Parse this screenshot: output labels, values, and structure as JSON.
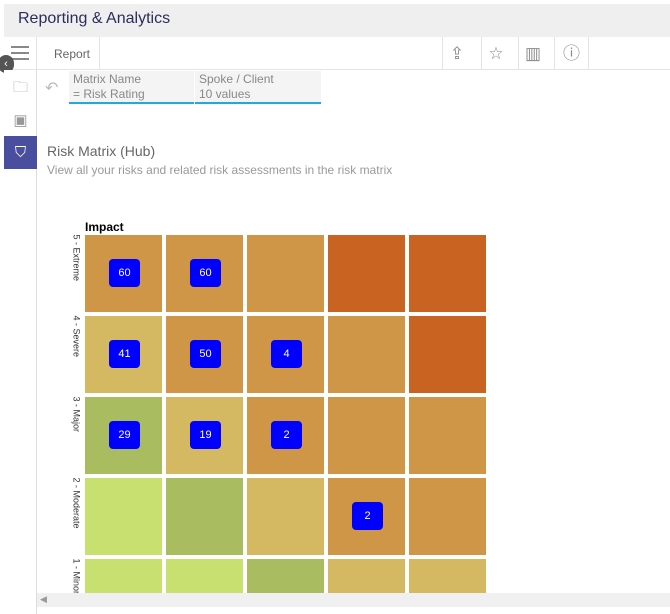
{
  "header": {
    "title": "Reporting & Analytics"
  },
  "toolbar": {
    "tab": "Report",
    "icons": [
      "share-icon",
      "star-icon",
      "report-book-icon",
      "info-icon"
    ]
  },
  "filters": [
    {
      "label": "Matrix Name",
      "value": "= Risk Rating"
    },
    {
      "label": "Spoke / Client",
      "value": "10 values"
    }
  ],
  "report": {
    "title": "Risk Matrix (Hub)",
    "subtitle": "View all your risks and related risk assessments in the risk matrix"
  },
  "chart_data": {
    "type": "heatmap",
    "title": "Impact",
    "rows": [
      "5 - Extreme",
      "4 - Severe",
      "3 - Major",
      "2 - Moderate",
      "1 - Minor"
    ],
    "columns_count": 5,
    "colors": {
      "critical": "#c86322",
      "high": "#d09648",
      "medium": "#d4b862",
      "low": "#a9bc5f",
      "very_low": "#c8e070",
      "badge": "#0000ff"
    },
    "cell_levels": [
      [
        "high",
        "high",
        "high",
        "critical",
        "critical"
      ],
      [
        "medium",
        "high",
        "high",
        "high",
        "critical"
      ],
      [
        "low",
        "medium",
        "high",
        "high",
        "high"
      ],
      [
        "very_low",
        "low",
        "medium",
        "high",
        "high"
      ],
      [
        "very_low",
        "very_low",
        "low",
        "medium",
        "medium"
      ]
    ],
    "counts": [
      [
        60,
        60,
        null,
        null,
        null
      ],
      [
        41,
        50,
        4,
        null,
        null
      ],
      [
        29,
        19,
        2,
        null,
        null
      ],
      [
        null,
        null,
        null,
        2,
        null
      ],
      [
        null,
        null,
        null,
        null,
        null
      ]
    ]
  }
}
